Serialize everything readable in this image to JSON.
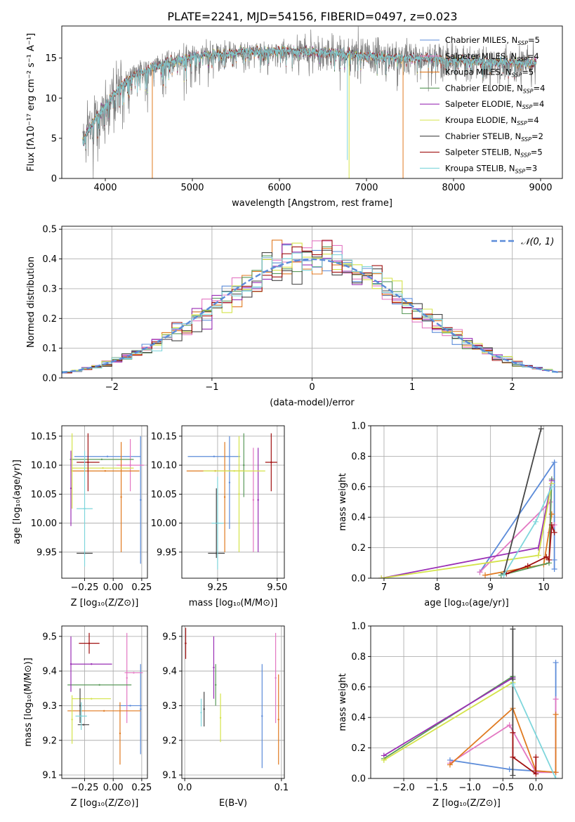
{
  "title": "PLATE=2241, MJD=54156, FIBERID=0497, z=0.023",
  "palette": {
    "blue": "#5b8bd9",
    "pink": "#e377c2",
    "orange": "#e07a20",
    "green": "#5a9a5a",
    "purple": "#9a2fb5",
    "yellow": "#d4e34a",
    "dark": "#454545",
    "red": "#a01010",
    "cyan": "#7fd6dc",
    "obs": "#7a7a7a",
    "gauss": "#5b8bd9",
    "grid": "#b0b0b0"
  },
  "chart_data": [
    {
      "id": "spectrum",
      "type": "line",
      "ylabel": "Flux [fλ10⁻¹⁷ erg cm⁻² s⁻¹ A⁻¹]",
      "xlabel": "wavelength [Angstrom, rest frame]",
      "xlim": [
        3500,
        9250
      ],
      "ylim": [
        0,
        19
      ],
      "xticks": [
        4000,
        5000,
        6000,
        7000,
        8000,
        9000
      ],
      "yticks": [
        0,
        5,
        10,
        15
      ],
      "grid": false,
      "legend_position": "top-right",
      "continuum_x": [
        3740,
        3800,
        3900,
        4000,
        4100,
        4200,
        4300,
        4500,
        4700,
        5000,
        5300,
        5600,
        6000,
        6300,
        6600,
        7000,
        7400,
        7800,
        8200,
        8600,
        8950
      ],
      "continuum_y": [
        4.5,
        6.0,
        7.5,
        9.0,
        10.5,
        11.8,
        12.6,
        13.6,
        14.4,
        15.2,
        15.6,
        15.7,
        15.9,
        15.8,
        15.7,
        15.3,
        15.1,
        15.0,
        14.6,
        14.5,
        14.4
      ],
      "models": [
        {
          "name": "Chabrier MILES, N_SSP=5",
          "color_key": "blue"
        },
        {
          "name": "Salpeter MILES, N_SSP=4",
          "color_key": "pink"
        },
        {
          "name": "Kroupa MILES, N_SSP=5",
          "color_key": "orange"
        },
        {
          "name": "Chabrier ELODIE, N_SSP=4",
          "color_key": "green"
        },
        {
          "name": "Salpeter ELODIE, N_SSP=4",
          "color_key": "purple"
        },
        {
          "name": "Kroupa ELODIE, N_SSP=4",
          "color_key": "yellow"
        },
        {
          "name": "Chabrier STELIB, N_SSP=2",
          "color_key": "dark"
        },
        {
          "name": "Salpeter STELIB, N_SSP=5",
          "color_key": "red"
        },
        {
          "name": "Kroupa STELIB, N_SSP=3",
          "color_key": "cyan"
        }
      ],
      "spikes": [
        {
          "x": 4540,
          "y": 0,
          "color_key": "orange"
        },
        {
          "x": 6780,
          "y": 2.3,
          "color_key": "cyan"
        },
        {
          "x": 6800,
          "y": 0,
          "color_key": "yellow"
        },
        {
          "x": 7420,
          "y": 0,
          "color_key": "orange"
        }
      ]
    },
    {
      "id": "residuals",
      "type": "histogram",
      "xlabel": "(data-model)/error",
      "ylabel": "Normed distribution",
      "xlim": [
        -2.5,
        2.5
      ],
      "ylim": [
        0,
        0.51
      ],
      "xticks": [
        -2,
        -1,
        0,
        1,
        2
      ],
      "yticks": [
        0.0,
        0.1,
        0.2,
        0.3,
        0.4,
        0.5
      ],
      "grid": true,
      "legend_position": "top-right",
      "bin_width": 0.1,
      "gaussian": {
        "name": "𝒩(0, 1)",
        "mean": 0,
        "sigma": 1
      }
    },
    {
      "id": "age_vs_Z",
      "type": "scatter",
      "xlabel": "Z [log₁₀(Z/Z⊙)]",
      "ylabel": "age  [log₁₀(age/yr)]",
      "xlim": [
        -0.45,
        0.3
      ],
      "ylim": [
        9.905,
        10.168
      ],
      "xticks": [
        -0.25,
        0.0,
        0.25
      ],
      "yticks": [
        9.95,
        10.0,
        10.05,
        10.1,
        10.15
      ],
      "points": [
        {
          "color_key": "blue",
          "x": 0.24,
          "y": 10.04,
          "xerr": 0.0,
          "yerr": 0.11
        },
        {
          "color_key": "blue",
          "x": -0.05,
          "y": 10.115,
          "xerr": 0.29,
          "yerr": 0.0
        },
        {
          "color_key": "pink",
          "x": 0.15,
          "y": 10.1,
          "xerr": 0.12,
          "yerr": 0.045
        },
        {
          "color_key": "orange",
          "x": 0.07,
          "y": 10.045,
          "xerr": 0.0,
          "yerr": 0.095
        },
        {
          "color_key": "orange",
          "x": -0.07,
          "y": 10.09,
          "xerr": 0.3,
          "yerr": 0.0
        },
        {
          "color_key": "green",
          "x": -0.1,
          "y": 10.11,
          "xerr": 0.28,
          "yerr": 0.0
        },
        {
          "color_key": "purple",
          "x": -0.37,
          "y": 10.06,
          "xerr": 0.0,
          "yerr": 0.065
        },
        {
          "color_key": "yellow",
          "x": -0.36,
          "y": 10.09,
          "xerr": 0.0,
          "yerr": 0.065
        },
        {
          "color_key": "yellow",
          "x": -0.09,
          "y": 10.095,
          "xerr": 0.27,
          "yerr": 0.0
        },
        {
          "color_key": "dark",
          "x": -0.25,
          "y": 9.948,
          "xerr": 0.07,
          "yerr": 0.0
        },
        {
          "color_key": "red",
          "x": -0.22,
          "y": 10.105,
          "xerr": 0.1,
          "yerr": 0.05
        },
        {
          "color_key": "cyan",
          "x": -0.25,
          "y": 10.025,
          "xerr": 0.07,
          "yerr": 0.1
        }
      ]
    },
    {
      "id": "age_vs_mass",
      "type": "scatter",
      "xlabel": "mass [log₁₀(M/M⊙)]",
      "ylabel": "",
      "xlim": [
        9.1,
        9.53
      ],
      "ylim": [
        9.905,
        10.168
      ],
      "xticks": [
        9.25,
        9.5
      ],
      "yticks": [
        9.95,
        10.0,
        10.05,
        10.1,
        10.15
      ],
      "points": [
        {
          "color_key": "blue",
          "x": 9.235,
          "y": 10.115,
          "xerr": 0.11,
          "yerr": 0.0
        },
        {
          "color_key": "blue",
          "x": 9.3,
          "y": 10.07,
          "xerr": 0.0,
          "yerr": 0.08
        },
        {
          "color_key": "pink",
          "x": 9.4,
          "y": 10.04,
          "xerr": 0.0,
          "yerr": 0.09
        },
        {
          "color_key": "orange",
          "x": 9.28,
          "y": 10.045,
          "xerr": 0.0,
          "yerr": 0.095
        },
        {
          "color_key": "orange",
          "x": 9.24,
          "y": 10.09,
          "xerr": 0.12,
          "yerr": 0.0
        },
        {
          "color_key": "green",
          "x": 9.36,
          "y": 10.1,
          "xerr": 0.0,
          "yerr": 0.055
        },
        {
          "color_key": "purple",
          "x": 9.42,
          "y": 10.04,
          "xerr": 0.0,
          "yerr": 0.09
        },
        {
          "color_key": "yellow",
          "x": 9.32,
          "y": 10.09,
          "xerr": 0.13,
          "yerr": 0.0
        },
        {
          "color_key": "yellow",
          "x": 9.34,
          "y": 10.05,
          "xerr": 0.0,
          "yerr": 0.1
        },
        {
          "color_key": "dark",
          "x": 9.245,
          "y": 9.948,
          "xerr": 0.035,
          "yerr": 0.0
        },
        {
          "color_key": "dark",
          "x": 9.245,
          "y": 10.0,
          "xerr": 0.0,
          "yerr": 0.06
        },
        {
          "color_key": "red",
          "x": 9.475,
          "y": 10.105,
          "xerr": 0.025,
          "yerr": 0.05
        },
        {
          "color_key": "cyan",
          "x": 9.25,
          "y": 10.0,
          "xerr": 0.025,
          "yerr": 0.08
        }
      ]
    },
    {
      "id": "weight_vs_age",
      "type": "line",
      "xlabel": "age  [log₁₀(age/yr)]",
      "ylabel": "mass weight",
      "xlim": [
        6.75,
        10.35
      ],
      "ylim": [
        0,
        1.0
      ],
      "xticks": [
        7,
        8,
        9,
        10
      ],
      "yticks": [
        0.0,
        0.2,
        0.4,
        0.6,
        0.8,
        1.0
      ],
      "series": [
        {
          "color_key": "blue",
          "x": [
            8.8,
            10.2,
            10.2,
            10.2
          ],
          "y": [
            0.04,
            0.76,
            0.12,
            0.06
          ]
        },
        {
          "color_key": "pink",
          "x": [
            8.8,
            10.12,
            10.12,
            10.2
          ],
          "y": [
            0.04,
            0.5,
            0.3,
            0.35
          ]
        },
        {
          "color_key": "orange",
          "x": [
            8.9,
            10.0,
            10.15,
            10.15
          ],
          "y": [
            0.02,
            0.09,
            0.42,
            0.42
          ]
        },
        {
          "color_key": "green",
          "x": [
            9.2,
            10.1,
            10.15
          ],
          "y": [
            0.02,
            0.1,
            0.65
          ]
        },
        {
          "color_key": "purple",
          "x": [
            6.95,
            9.9,
            10.15
          ],
          "y": [
            0.0,
            0.2,
            0.64
          ]
        },
        {
          "color_key": "yellow",
          "x": [
            6.95,
            9.9,
            10.15
          ],
          "y": [
            0.0,
            0.15,
            0.62
          ]
        },
        {
          "color_key": "dark",
          "x": [
            9.25,
            9.95
          ],
          "y": [
            0.03,
            0.98
          ]
        },
        {
          "color_key": "red",
          "x": [
            9.3,
            9.7,
            10.05,
            10.1,
            10.15,
            10.2
          ],
          "y": [
            0.03,
            0.08,
            0.14,
            0.12,
            0.35,
            0.3
          ]
        },
        {
          "color_key": "cyan",
          "x": [
            9.25,
            9.85,
            10.15
          ],
          "y": [
            0.02,
            0.37,
            0.6
          ]
        }
      ]
    },
    {
      "id": "mass_vs_Z",
      "type": "scatter",
      "xlabel": "Z [log₁₀(Z/Z⊙)]",
      "ylabel": "mass [log₁₀(M/M⊙)]",
      "xlim": [
        -0.45,
        0.3
      ],
      "ylim": [
        9.09,
        9.53
      ],
      "xticks": [
        -0.25,
        0.0,
        0.25
      ],
      "yticks": [
        9.1,
        9.2,
        9.3,
        9.4,
        9.5
      ],
      "points": [
        {
          "color_key": "blue",
          "x": 0.24,
          "y": 9.29,
          "xerr": 0.0,
          "yerr": 0.13
        },
        {
          "color_key": "blue",
          "x": 0.15,
          "y": 9.3,
          "xerr": 0.1,
          "yerr": 0.0
        },
        {
          "color_key": "pink",
          "x": 0.12,
          "y": 9.38,
          "xerr": 0.0,
          "yerr": 0.13
        },
        {
          "color_key": "pink",
          "x": 0.18,
          "y": 9.395,
          "xerr": 0.08,
          "yerr": 0.0
        },
        {
          "color_key": "orange",
          "x": 0.06,
          "y": 9.22,
          "xerr": 0.0,
          "yerr": 0.09
        },
        {
          "color_key": "orange",
          "x": -0.08,
          "y": 9.285,
          "xerr": 0.32,
          "yerr": 0.0
        },
        {
          "color_key": "green",
          "x": -0.12,
          "y": 9.36,
          "xerr": 0.28,
          "yerr": 0.0
        },
        {
          "color_key": "purple",
          "x": -0.37,
          "y": 9.42,
          "xerr": 0.0,
          "yerr": 0.08
        },
        {
          "color_key": "purple",
          "x": -0.19,
          "y": 9.42,
          "xerr": 0.18,
          "yerr": 0.0
        },
        {
          "color_key": "yellow",
          "x": -0.36,
          "y": 9.26,
          "xerr": 0.0,
          "yerr": 0.07
        },
        {
          "color_key": "yellow",
          "x": -0.19,
          "y": 9.32,
          "xerr": 0.17,
          "yerr": 0.0
        },
        {
          "color_key": "dark",
          "x": -0.29,
          "y": 9.3,
          "xerr": 0.0,
          "yerr": 0.05
        },
        {
          "color_key": "dark",
          "x": -0.26,
          "y": 9.245,
          "xerr": 0.05,
          "yerr": 0.0
        },
        {
          "color_key": "red",
          "x": -0.21,
          "y": 9.48,
          "xerr": 0.09,
          "yerr": 0.03
        },
        {
          "color_key": "cyan",
          "x": -0.28,
          "y": 9.27,
          "xerr": 0.05,
          "yerr": 0.04
        }
      ]
    },
    {
      "id": "mass_vs_ebv",
      "type": "scatter",
      "xlabel": "E(B-V)",
      "ylabel": "",
      "xlim": [
        -0.003,
        0.103
      ],
      "ylim": [
        9.09,
        9.53
      ],
      "xticks": [
        0.0,
        0.1
      ],
      "yticks": [
        9.1,
        9.2,
        9.3,
        9.4,
        9.5
      ],
      "points": [
        {
          "color_key": "blue",
          "x": 0.08,
          "y": 9.27,
          "xerr": 0.0,
          "yerr": 0.15
        },
        {
          "color_key": "pink",
          "x": 0.094,
          "y": 9.38,
          "xerr": 0.0,
          "yerr": 0.13
        },
        {
          "color_key": "orange",
          "x": 0.097,
          "y": 9.26,
          "xerr": 0.0,
          "yerr": 0.13
        },
        {
          "color_key": "green",
          "x": 0.032,
          "y": 9.36,
          "xerr": 0.0,
          "yerr": 0.06
        },
        {
          "color_key": "purple",
          "x": 0.03,
          "y": 9.41,
          "xerr": 0.0,
          "yerr": 0.09
        },
        {
          "color_key": "yellow",
          "x": 0.037,
          "y": 9.265,
          "xerr": 0.0,
          "yerr": 0.07
        },
        {
          "color_key": "dark",
          "x": 0.02,
          "y": 9.29,
          "xerr": 0.0,
          "yerr": 0.05
        },
        {
          "color_key": "red",
          "x": 0.001,
          "y": 9.48,
          "xerr": 0.0,
          "yerr": 0.045
        },
        {
          "color_key": "cyan",
          "x": 0.017,
          "y": 9.28,
          "xerr": 0.0,
          "yerr": 0.04
        }
      ]
    },
    {
      "id": "weight_vs_Z",
      "type": "line",
      "xlabel": "Z [log₁₀(Z/Z⊙)]",
      "ylabel": "mass weight",
      "xlim": [
        -2.5,
        0.4
      ],
      "ylim": [
        0,
        1.0
      ],
      "xticks": [
        -2.0,
        -1.5,
        -1.0,
        -0.5,
        0.0
      ],
      "yticks": [
        0.0,
        0.2,
        0.4,
        0.6,
        0.8,
        1.0
      ],
      "series": [
        {
          "color_key": "blue",
          "x": [
            -1.3,
            -0.4,
            0.3,
            0.3
          ],
          "y": [
            0.12,
            0.06,
            0.04,
            0.76
          ]
        },
        {
          "color_key": "pink",
          "x": [
            -1.3,
            -0.4,
            0.0,
            0.3,
            0.3
          ],
          "y": [
            0.1,
            0.35,
            0.04,
            0.04,
            0.52
          ]
        },
        {
          "color_key": "orange",
          "x": [
            -1.3,
            -0.35,
            0.0,
            0.3,
            0.3
          ],
          "y": [
            0.09,
            0.46,
            0.05,
            0.04,
            0.42
          ]
        },
        {
          "color_key": "green",
          "x": [
            -2.3,
            -0.35
          ],
          "y": [
            0.13,
            0.67
          ]
        },
        {
          "color_key": "purple",
          "x": [
            -2.3,
            -0.35
          ],
          "y": [
            0.15,
            0.66
          ]
        },
        {
          "color_key": "yellow",
          "x": [
            -2.3,
            -0.35
          ],
          "y": [
            0.12,
            0.63
          ]
        },
        {
          "color_key": "dark",
          "x": [
            -0.35,
            -0.35,
            -0.35
          ],
          "y": [
            0.02,
            0.98,
            0.65
          ]
        },
        {
          "color_key": "red",
          "x": [
            -0.35,
            -0.35,
            0.0,
            0.0
          ],
          "y": [
            0.3,
            0.14,
            0.03,
            0.14
          ]
        },
        {
          "color_key": "cyan",
          "x": [
            -0.35,
            0.3
          ],
          "y": [
            0.62,
            0.0
          ]
        }
      ]
    }
  ]
}
